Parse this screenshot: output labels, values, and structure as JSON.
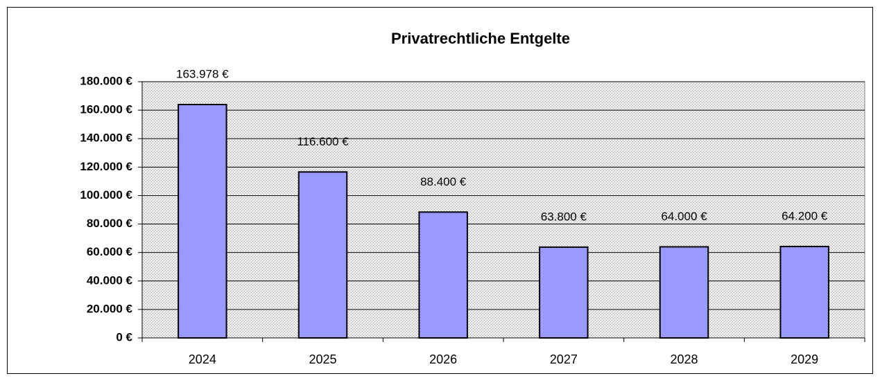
{
  "chart_data": {
    "type": "bar",
    "title": "Privatrechtliche Entgelte",
    "categories": [
      "2024",
      "2025",
      "2026",
      "2027",
      "2028",
      "2029"
    ],
    "values": [
      163978,
      116600,
      88400,
      63800,
      64000,
      64200
    ],
    "value_labels": [
      "163.978 €",
      "116.600 €",
      "88.400 €",
      "63.800 €",
      "64.000 €",
      "64.200 €"
    ],
    "color": "#9999ff",
    "ylim": [
      0,
      180000
    ],
    "yticks": [
      {
        "value": 0,
        "label": "0 €"
      },
      {
        "value": 20000,
        "label": "20.000 €"
      },
      {
        "value": 40000,
        "label": "40.000 €"
      },
      {
        "value": 60000,
        "label": "60.000 €"
      },
      {
        "value": 80000,
        "label": "80.000 €"
      },
      {
        "value": 100000,
        "label": "100.000 €"
      },
      {
        "value": 120000,
        "label": "120.000 €"
      },
      {
        "value": 140000,
        "label": "140.000 €"
      },
      {
        "value": 160000,
        "label": "160.000 €"
      },
      {
        "value": 180000,
        "label": "180.000 €"
      }
    ],
    "grid": true
  }
}
